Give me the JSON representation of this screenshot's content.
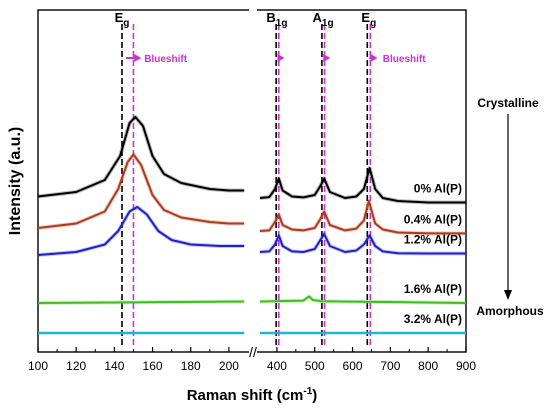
{
  "chart_data": {
    "type": "line",
    "xlabel": "Raman shift (cm",
    "xlabel_sup": "-1",
    "xlabel_end": ")",
    "ylabel": "Intensity (a.u.)",
    "axis_break": "//",
    "left_panel": {
      "xlim": [
        100,
        210
      ],
      "ticks": [
        100,
        120,
        140,
        160,
        180,
        200
      ]
    },
    "right_panel": {
      "xlim": [
        350,
        900
      ],
      "ticks": [
        400,
        500,
        600,
        700,
        800,
        900
      ]
    },
    "series": [
      {
        "name": "0% Al(P)",
        "color": "#000000",
        "left": [
          [
            100,
            0.35
          ],
          [
            120,
            0.5
          ],
          [
            135,
            0.9
          ],
          [
            143,
            1.7
          ],
          [
            148,
            2.8
          ],
          [
            151,
            3.0
          ],
          [
            155,
            2.7
          ],
          [
            160,
            1.7
          ],
          [
            166,
            1.1
          ],
          [
            175,
            0.8
          ],
          [
            190,
            0.6
          ],
          [
            200,
            0.55
          ],
          [
            208,
            0.55
          ]
        ],
        "right": [
          [
            355,
            0.3
          ],
          [
            380,
            0.33
          ],
          [
            395,
            0.6
          ],
          [
            405,
            0.95
          ],
          [
            415,
            0.55
          ],
          [
            440,
            0.35
          ],
          [
            470,
            0.32
          ],
          [
            500,
            0.4
          ],
          [
            515,
            0.7
          ],
          [
            525,
            0.95
          ],
          [
            540,
            0.5
          ],
          [
            580,
            0.3
          ],
          [
            610,
            0.35
          ],
          [
            630,
            0.6
          ],
          [
            645,
            1.3
          ],
          [
            660,
            0.6
          ],
          [
            680,
            0.3
          ],
          [
            720,
            0.2
          ],
          [
            800,
            0.15
          ],
          [
            900,
            0.15
          ]
        ]
      },
      {
        "name": "0.4% Al(P)",
        "color": "#b03a1c",
        "left": [
          [
            100,
            0.3
          ],
          [
            120,
            0.45
          ],
          [
            135,
            0.85
          ],
          [
            142,
            1.6
          ],
          [
            147,
            2.5
          ],
          [
            150,
            2.75
          ],
          [
            154,
            2.4
          ],
          [
            160,
            1.4
          ],
          [
            166,
            0.9
          ],
          [
            175,
            0.65
          ],
          [
            190,
            0.5
          ],
          [
            200,
            0.45
          ],
          [
            208,
            0.45
          ]
        ],
        "right": [
          [
            355,
            0.2
          ],
          [
            380,
            0.22
          ],
          [
            395,
            0.5
          ],
          [
            405,
            0.75
          ],
          [
            415,
            0.4
          ],
          [
            440,
            0.25
          ],
          [
            470,
            0.22
          ],
          [
            500,
            0.3
          ],
          [
            515,
            0.6
          ],
          [
            525,
            0.85
          ],
          [
            540,
            0.4
          ],
          [
            580,
            0.22
          ],
          [
            610,
            0.28
          ],
          [
            630,
            0.55
          ],
          [
            643,
            1.2
          ],
          [
            660,
            0.45
          ],
          [
            680,
            0.25
          ],
          [
            720,
            0.15
          ],
          [
            800,
            0.12
          ],
          [
            900,
            0.12
          ]
        ]
      },
      {
        "name": "1.2% Al(P)",
        "color": "#1f22c9",
        "left": [
          [
            100,
            0.0
          ],
          [
            120,
            0.1
          ],
          [
            135,
            0.35
          ],
          [
            142,
            0.8
          ],
          [
            148,
            1.45
          ],
          [
            152,
            1.6
          ],
          [
            157,
            1.35
          ],
          [
            163,
            0.8
          ],
          [
            170,
            0.5
          ],
          [
            180,
            0.35
          ],
          [
            195,
            0.3
          ],
          [
            208,
            0.3
          ]
        ],
        "right": [
          [
            355,
            0.1
          ],
          [
            380,
            0.12
          ],
          [
            395,
            0.35
          ],
          [
            405,
            0.65
          ],
          [
            415,
            0.3
          ],
          [
            440,
            0.12
          ],
          [
            470,
            0.1
          ],
          [
            500,
            0.2
          ],
          [
            515,
            0.5
          ],
          [
            525,
            0.7
          ],
          [
            540,
            0.3
          ],
          [
            580,
            0.1
          ],
          [
            610,
            0.15
          ],
          [
            630,
            0.35
          ],
          [
            645,
            0.65
          ],
          [
            660,
            0.3
          ],
          [
            680,
            0.12
          ],
          [
            720,
            0.06
          ],
          [
            800,
            0.05
          ],
          [
            900,
            0.05
          ]
        ]
      },
      {
        "name": "1.6% Al(P)",
        "color": "#3fbf1f",
        "left": [
          [
            100,
            0.0
          ],
          [
            208,
            0.05
          ]
        ],
        "right": [
          [
            355,
            0.05
          ],
          [
            470,
            0.08
          ],
          [
            485,
            0.22
          ],
          [
            495,
            0.1
          ],
          [
            520,
            0.06
          ],
          [
            900,
            0.0
          ]
        ]
      },
      {
        "name": "3.2% Al(P)",
        "color": "#1fb6d4",
        "left": [
          [
            100,
            0.0
          ],
          [
            208,
            0.0
          ]
        ],
        "right": [
          [
            355,
            0.0
          ],
          [
            900,
            0.0
          ]
        ]
      }
    ],
    "offsets": [
      4.2,
      3.2,
      2.6,
      1.0,
      0.0
    ],
    "series_labels": [
      "0% Al(P)",
      "0.4% Al(P)",
      "1.2% Al(P)",
      "1.6% Al(P)",
      "3.2% Al(P)"
    ],
    "vlines": [
      {
        "x": 144,
        "panel": "left",
        "color": "#000000"
      },
      {
        "x": 150,
        "panel": "left",
        "color": "#cc33cc"
      },
      {
        "x": 398,
        "panel": "right",
        "color": "#000000"
      },
      {
        "x": 405,
        "panel": "right",
        "color": "#cc33cc"
      },
      {
        "x": 519,
        "panel": "right",
        "color": "#000000"
      },
      {
        "x": 526,
        "panel": "right",
        "color": "#cc33cc"
      },
      {
        "x": 639,
        "panel": "right",
        "color": "#000000"
      },
      {
        "x": 647,
        "panel": "right",
        "color": "#cc33cc"
      }
    ],
    "mode_labels": [
      {
        "text": "E",
        "sub": "g",
        "x": 144,
        "panel": "left"
      },
      {
        "text": "B",
        "sub": "1g",
        "x": 400,
        "panel": "right"
      },
      {
        "text": "A",
        "sub": "1g",
        "x": 522,
        "panel": "right"
      },
      {
        "text": "E",
        "sub": "g",
        "x": 643,
        "panel": "right"
      }
    ],
    "annotations": {
      "blueshift": "Blueshift",
      "crystalline": "Crystalline",
      "amorphous": "Amorphous"
    },
    "grid": false,
    "legend": "none"
  }
}
